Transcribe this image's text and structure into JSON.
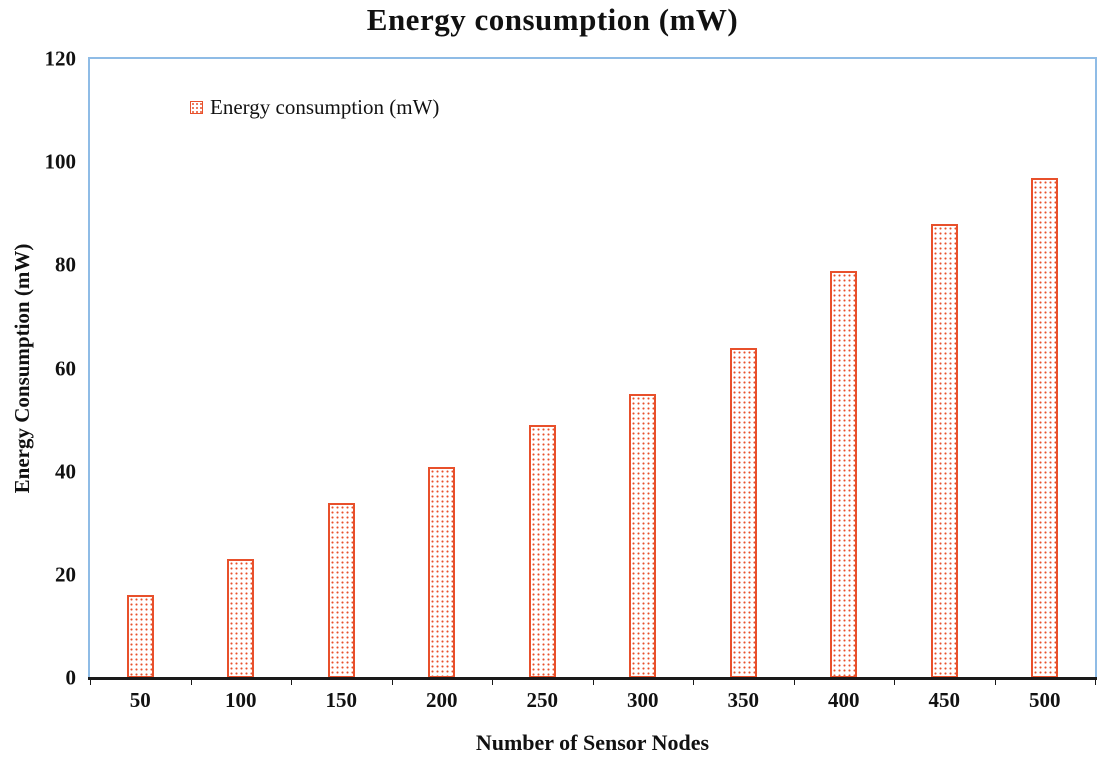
{
  "title": "Energy consumption (mW)",
  "legend": {
    "label": "Energy consumption (mW)"
  },
  "chart_data": {
    "type": "bar",
    "title": "Energy consumption (mW)",
    "xlabel": "Number of Sensor Nodes",
    "ylabel": "Energy Consumption (mW)",
    "categories": [
      "50",
      "100",
      "150",
      "200",
      "250",
      "300",
      "350",
      "400",
      "450",
      "500"
    ],
    "values": [
      16,
      23,
      34,
      41,
      49,
      55,
      64,
      79,
      88,
      97
    ],
    "ylim": [
      0,
      120
    ],
    "yticks": [
      0,
      20,
      40,
      60,
      80,
      100,
      120
    ],
    "legend_entries": [
      "Energy consumption (mW)"
    ],
    "legend_position": "inside-top-left",
    "grid": false,
    "bar_fill_style": "dotted-hatch",
    "colors": {
      "bar": "#E8502B",
      "plot_border": "#8FBCE6",
      "axis": "#1a1a1a",
      "text": "#111111"
    }
  }
}
